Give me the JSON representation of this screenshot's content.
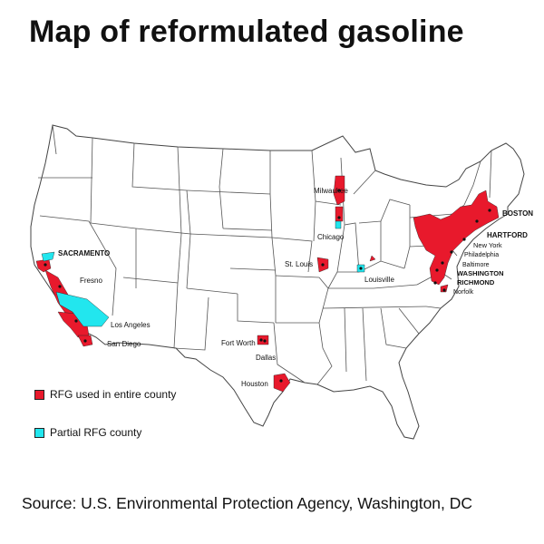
{
  "title": "Map of reformulated gasoline",
  "source": "Source: U.S. Environmental Protection Agency, Washington, DC",
  "legend": [
    {
      "key": "entire",
      "label": "RFG used in entire county",
      "color": "#e8192c"
    },
    {
      "key": "partial",
      "label": "Partial RFG county",
      "color": "#22e6ee"
    }
  ],
  "cities": [
    {
      "key": "sacramento",
      "label": "SACRAMENTO"
    },
    {
      "key": "fresno",
      "label": "Fresno"
    },
    {
      "key": "los_angeles",
      "label": "Los Angeles"
    },
    {
      "key": "san_diego",
      "label": "San Diego"
    },
    {
      "key": "milwaukee",
      "label": "Milwaukee"
    },
    {
      "key": "chicago",
      "label": "Chicago"
    },
    {
      "key": "st_louis",
      "label": "St. Louis"
    },
    {
      "key": "louisville",
      "label": "Louisville"
    },
    {
      "key": "fort_worth",
      "label": "Fort Worth"
    },
    {
      "key": "dallas",
      "label": "Dallas"
    },
    {
      "key": "houston",
      "label": "Houston"
    },
    {
      "key": "boston",
      "label": "BOSTON"
    },
    {
      "key": "hartford",
      "label": "HARTFORD"
    },
    {
      "key": "new_york",
      "label": "New York"
    },
    {
      "key": "philadelphia",
      "label": "Philadelphia"
    },
    {
      "key": "baltimore",
      "label": "Baltimore"
    },
    {
      "key": "washington",
      "label": "WASHINGTON"
    },
    {
      "key": "richmond",
      "label": "RICHMOND"
    },
    {
      "key": "norfolk",
      "label": "Norfolk"
    }
  ],
  "colors": {
    "rfg_entire": "#e8192c",
    "rfg_partial": "#22e6ee",
    "state_border": "#444444",
    "land": "#ffffff"
  },
  "map": {
    "region": "Contiguous United States",
    "layers": [
      "state-borders",
      "rfg-areas",
      "city-markers",
      "city-labels"
    ]
  }
}
